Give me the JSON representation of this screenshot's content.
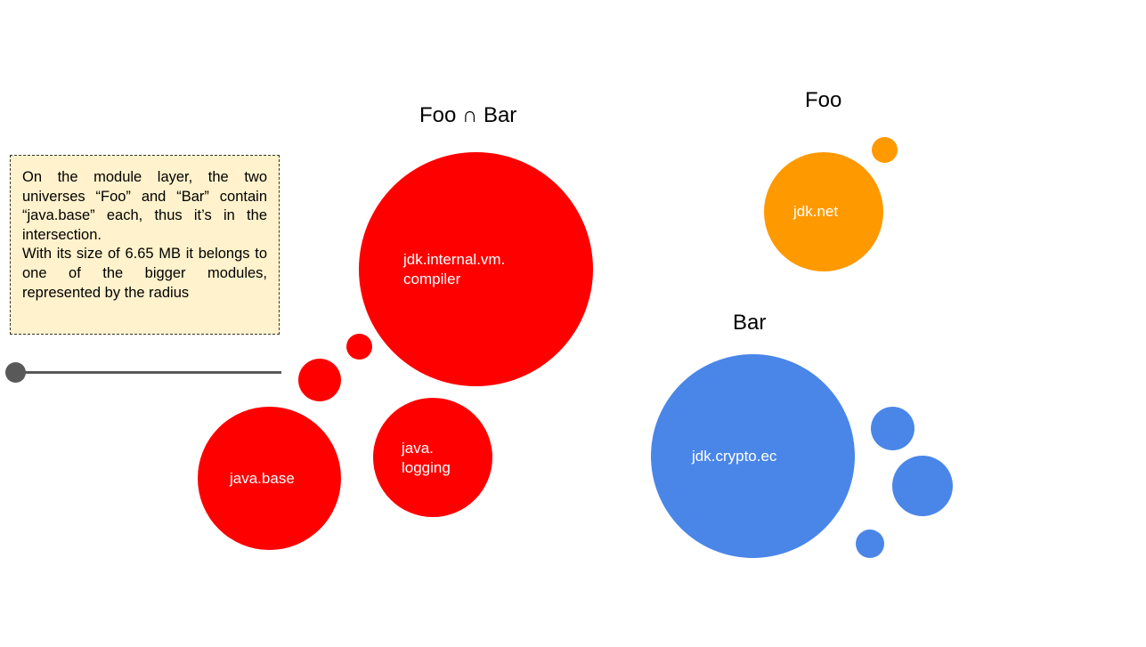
{
  "colors": {
    "intersection": "#ff0000",
    "foo": "#ff9900",
    "bar": "#4a86e8",
    "callout_fill": "#fff2cc",
    "slider": "#595959"
  },
  "groups": {
    "intersection": {
      "title": "Foo ∩ Bar"
    },
    "foo": {
      "title": "Foo"
    },
    "bar": {
      "title": "Bar"
    }
  },
  "modules": {
    "jdk_internal_vm_compiler": {
      "line1": "jdk.internal.vm.",
      "line2": "compiler"
    },
    "java_base": {
      "label": "java.base"
    },
    "java_logging": {
      "line1": "java.",
      "line2": "logging"
    },
    "jdk_net": {
      "label": "jdk.net"
    },
    "jdk_crypto_ec": {
      "label": "jdk.crypto.ec"
    }
  },
  "callout": {
    "paragraph1": "On the module layer, the two universes “Foo” and “Bar” contain “java.base” each, thus it’s in the intersection.",
    "paragraph2": "With its size of 6.65 MB it belongs to one of the bigger modules, represented by the radius"
  },
  "slider": {
    "icon": "slider-handle"
  }
}
